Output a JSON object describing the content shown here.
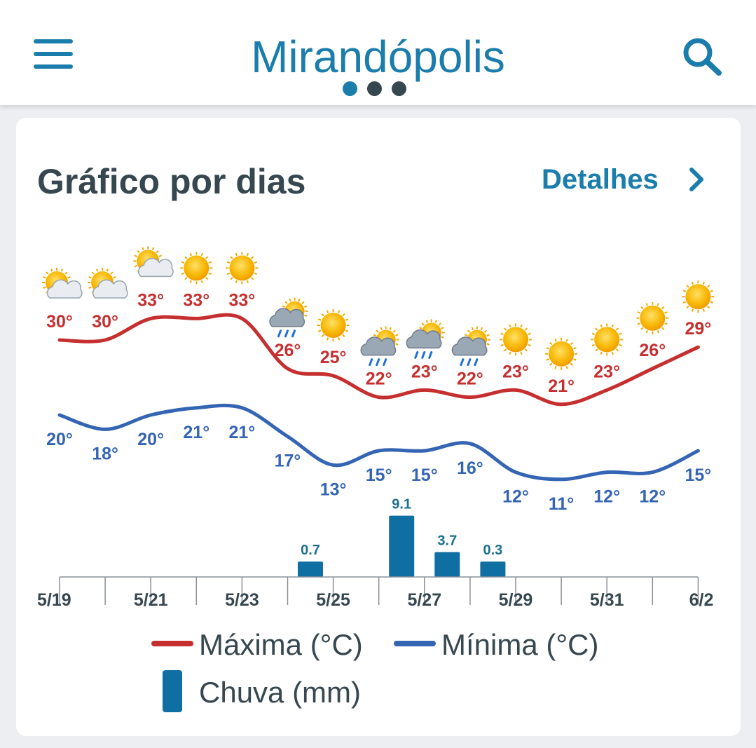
{
  "header": {
    "title": "Mirandópolis",
    "page_dots": 3,
    "colors": {
      "accent": "#1a7dab",
      "dot_active": "#1a7dab",
      "dot_inactive": "#37474f"
    },
    "icons": {
      "menu": "hamburger-menu-icon",
      "search": "search-icon"
    }
  },
  "card": {
    "title": "Gráfico por dias",
    "details_label": "Detalhes",
    "details_icon": "chevron-right-icon"
  },
  "legend": {
    "max_label": "Máxima (°C)",
    "min_label": "Mínima (°C)",
    "rain_label": "Chuva (mm)"
  },
  "chart_data": {
    "type": "line",
    "x": [
      "5/19",
      "5/20",
      "5/21",
      "5/22",
      "5/23",
      "5/24",
      "5/25",
      "5/26",
      "5/27",
      "5/28",
      "5/29",
      "5/30",
      "5/31",
      "6/1",
      "6/2"
    ],
    "x_tick_labels": [
      "5/19",
      "5/21",
      "5/23",
      "5/25",
      "5/27",
      "5/29",
      "5/31",
      "6/2"
    ],
    "weather_icons": [
      "partly-cloudy-icon",
      "partly-cloudy-icon",
      "partly-cloudy-icon",
      "sun-icon",
      "sun-icon",
      "rain-icon",
      "sun-icon",
      "rain-icon",
      "rain-icon",
      "rain-icon",
      "sun-icon",
      "sun-icon",
      "sun-icon",
      "sun-icon",
      "sun-icon"
    ],
    "series": [
      {
        "name": "Máxima (°C)",
        "color": "#c62f2f",
        "values": [
          30,
          30,
          33,
          33,
          33,
          26,
          25,
          22,
          23,
          22,
          23,
          21,
          23,
          26,
          29
        ],
        "labels": [
          "30°",
          "30°",
          "33°",
          "33°",
          "33°",
          "26°",
          "25°",
          "22°",
          "23°",
          "22°",
          "23°",
          "21°",
          "23°",
          "26°",
          "29°"
        ]
      },
      {
        "name": "Mínima (°C)",
        "color": "#3464b4",
        "values": [
          20,
          18,
          20,
          21,
          21,
          17,
          13,
          15,
          15,
          16,
          12,
          11,
          12,
          12,
          15
        ],
        "labels": [
          "20°",
          "18°",
          "20°",
          "21°",
          "21°",
          "17°",
          "13°",
          "15°",
          "15°",
          "16°",
          "12°",
          "11°",
          "12°",
          "12°",
          "15°"
        ]
      },
      {
        "name": "Chuva (mm)",
        "type": "bar",
        "color": "#0f6fa3",
        "values": [
          0,
          0,
          0,
          0,
          0,
          0.7,
          0,
          9.1,
          3.7,
          0.3,
          0,
          0,
          0,
          0,
          0
        ],
        "labels": [
          "",
          "",
          "",
          "",
          "",
          "0.7",
          "",
          "9.1",
          "3.7",
          "0.3",
          "",
          "",
          "",
          "",
          ""
        ]
      }
    ]
  }
}
